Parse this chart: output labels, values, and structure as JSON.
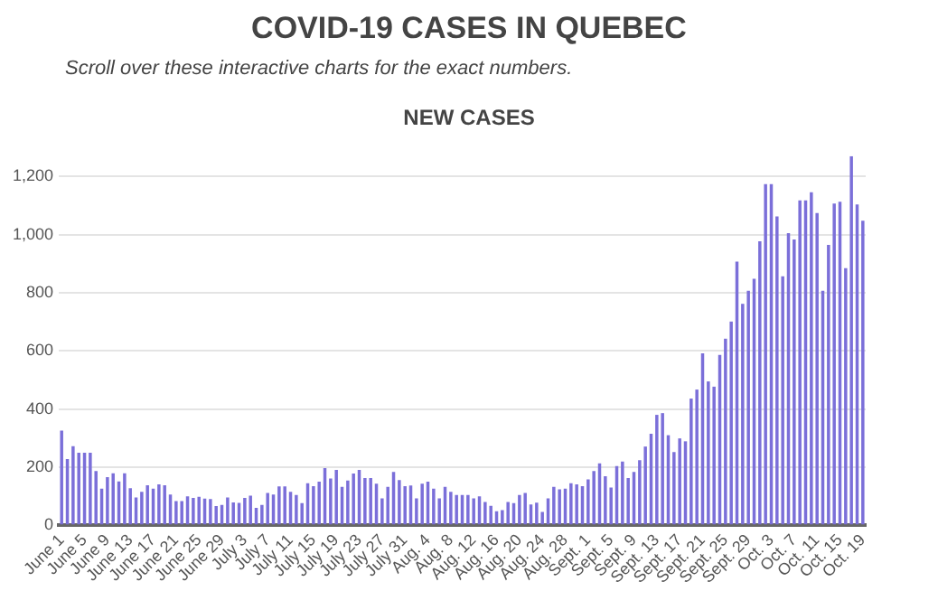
{
  "chart_data": {
    "type": "bar",
    "title": "COVID-19 CASES IN QUEBEC",
    "subtitle": "Scroll over these interactive charts for the exact numbers.",
    "annotations": [
      "NEW CASES"
    ],
    "categories": [
      "June 1",
      null,
      null,
      null,
      "June 5",
      null,
      null,
      null,
      "June 9",
      null,
      null,
      null,
      "June 13",
      null,
      null,
      null,
      "June 17",
      null,
      null,
      null,
      "June 21",
      null,
      null,
      null,
      "June 25",
      null,
      null,
      null,
      "June 29",
      null,
      null,
      null,
      "July 3",
      null,
      null,
      null,
      "July 7",
      null,
      null,
      null,
      "July 11",
      null,
      null,
      null,
      "July 15",
      null,
      null,
      null,
      "July 19",
      null,
      null,
      null,
      "July 23",
      null,
      null,
      null,
      "July 27",
      null,
      null,
      null,
      "July 31",
      null,
      null,
      null,
      "Aug. 4",
      null,
      null,
      null,
      "Aug. 8",
      null,
      null,
      null,
      "Aug. 12",
      null,
      null,
      null,
      "Aug. 16",
      null,
      null,
      null,
      "Aug. 20",
      null,
      null,
      null,
      "Aug. 24",
      null,
      null,
      null,
      "Aug. 28",
      null,
      null,
      null,
      "Sept. 1",
      null,
      null,
      null,
      "Sept. 5",
      null,
      null,
      null,
      "Sept. 9",
      null,
      null,
      null,
      "Sept. 13",
      null,
      null,
      null,
      "Sept. 17",
      null,
      null,
      null,
      "Sept. 21",
      null,
      null,
      null,
      "Sept. 25",
      null,
      null,
      null,
      "Sept. 29",
      null,
      null,
      null,
      "Oct. 3",
      null,
      null,
      null,
      "Oct. 7",
      null,
      null,
      null,
      "Oct. 11",
      null,
      null,
      null,
      "Oct. 15",
      null,
      null,
      null,
      "Oct. 19"
    ],
    "values": [
      326,
      228,
      272,
      250,
      250,
      250,
      187,
      126,
      166,
      179,
      151,
      179,
      128,
      96,
      115,
      138,
      126,
      141,
      138,
      106,
      83,
      83,
      100,
      94,
      98,
      92,
      90,
      66,
      70,
      96,
      79,
      77,
      94,
      102,
      60,
      70,
      111,
      106,
      134,
      134,
      115,
      104,
      76,
      145,
      135,
      150,
      197,
      161,
      191,
      132,
      154,
      178,
      191,
      163,
      163,
      143,
      93,
      132,
      184,
      156,
      135,
      137,
      93,
      143,
      150,
      126,
      93,
      132,
      115,
      104,
      104,
      104,
      93,
      100,
      80,
      67,
      48,
      52,
      80,
      76,
      104,
      111,
      72,
      78,
      46,
      93,
      132,
      124,
      126,
      145,
      141,
      135,
      158,
      187,
      213,
      169,
      130,
      204,
      219,
      163,
      184,
      224,
      271,
      315,
      380,
      386,
      310,
      252,
      299,
      289,
      436,
      467,
      592,
      495,
      477,
      586,
      642,
      701,
      907,
      762,
      807,
      848,
      977,
      1174,
      1174,
      1063,
      857,
      1005,
      983,
      1118,
      1118,
      1146,
      1074,
      807,
      965,
      1107,
      1113,
      885,
      1270,
      1104,
      1048
    ],
    "color": "#7b6fd9",
    "ylim": [
      0,
      1270
    ],
    "yticks": [
      0,
      {
        "value": 200,
        "label": "200"
      },
      {
        "value": 400,
        "label": "400"
      },
      {
        "value": 600,
        "label": "600"
      },
      {
        "value": 800,
        "label": "800"
      },
      {
        "value": 1000,
        "label": "1,000"
      },
      {
        "value": 1200,
        "label": "1,200"
      }
    ],
    "grid": "y"
  }
}
